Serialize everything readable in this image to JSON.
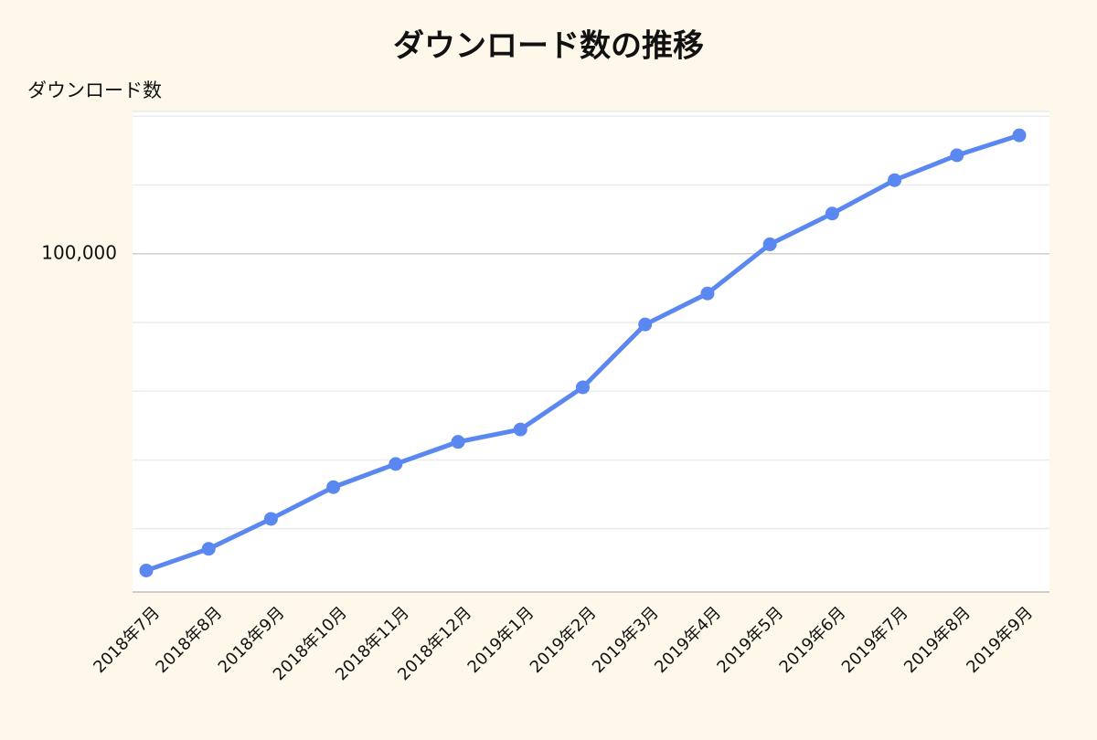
{
  "chart_data": {
    "type": "line",
    "title": "ダウンロード数の推移",
    "y_label": "ダウンロード数",
    "categories": [
      "2018年7月",
      "2018年8月",
      "2018年9月",
      "2018年10月",
      "2018年11月",
      "2018年12月",
      "2019年1月",
      "2019年2月",
      "2019年3月",
      "2019年4月",
      "2019年5月",
      "2019年6月",
      "2019年7月",
      "2019年8月",
      "2019年9月"
    ],
    "series": [
      {
        "name": "ダウンロード数",
        "color": "#5b87f0",
        "values": [
          4100,
          5100,
          6900,
          9500,
          12000,
          15000,
          17000,
          26000,
          49000,
          67000,
          110000,
          150000,
          210000,
          270000,
          330000
        ]
      }
    ],
    "yscale": "log",
    "ylim": [
      3300,
      420000
    ],
    "yticks": [
      {
        "value": 100000,
        "label": "100,000"
      }
    ],
    "minor_yticks": [
      6250,
      12500,
      25000,
      50000,
      200000,
      400000
    ],
    "grid": true
  }
}
